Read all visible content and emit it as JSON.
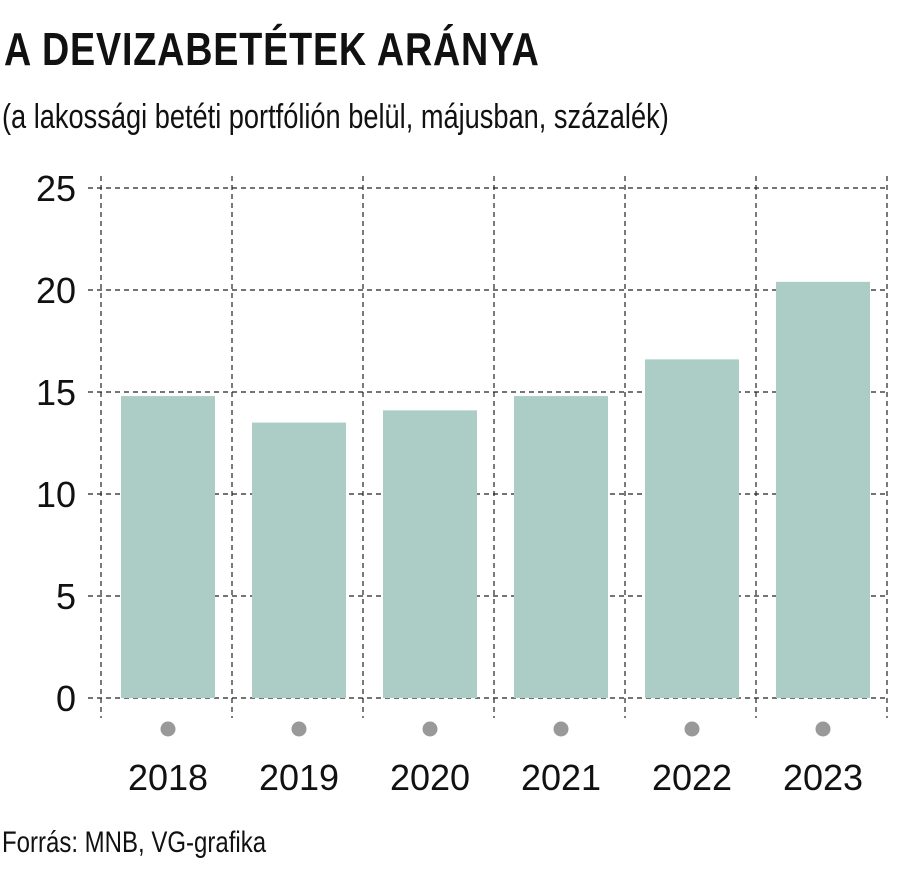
{
  "title": "A DEVIZABETÉTEK ARÁNYA",
  "subtitle": "(a lakossági betéti portfólión belül, májusban, százalék)",
  "source": "Forrás: MNB, VG-grafika",
  "colors": {
    "bar": "#abcdc6",
    "grid": "#222222",
    "marker": "#999999",
    "text": "#111111"
  },
  "chart_data": {
    "type": "bar",
    "categories": [
      "2018",
      "2019",
      "2020",
      "2021",
      "2022",
      "2023"
    ],
    "values": [
      14.8,
      13.5,
      14.1,
      14.8,
      16.6,
      20.4
    ],
    "ylim": [
      0,
      25
    ],
    "yticks": [
      "0",
      "5",
      "10",
      "15",
      "20",
      "25"
    ],
    "grid": true,
    "xlabel": "",
    "ylabel": ""
  }
}
